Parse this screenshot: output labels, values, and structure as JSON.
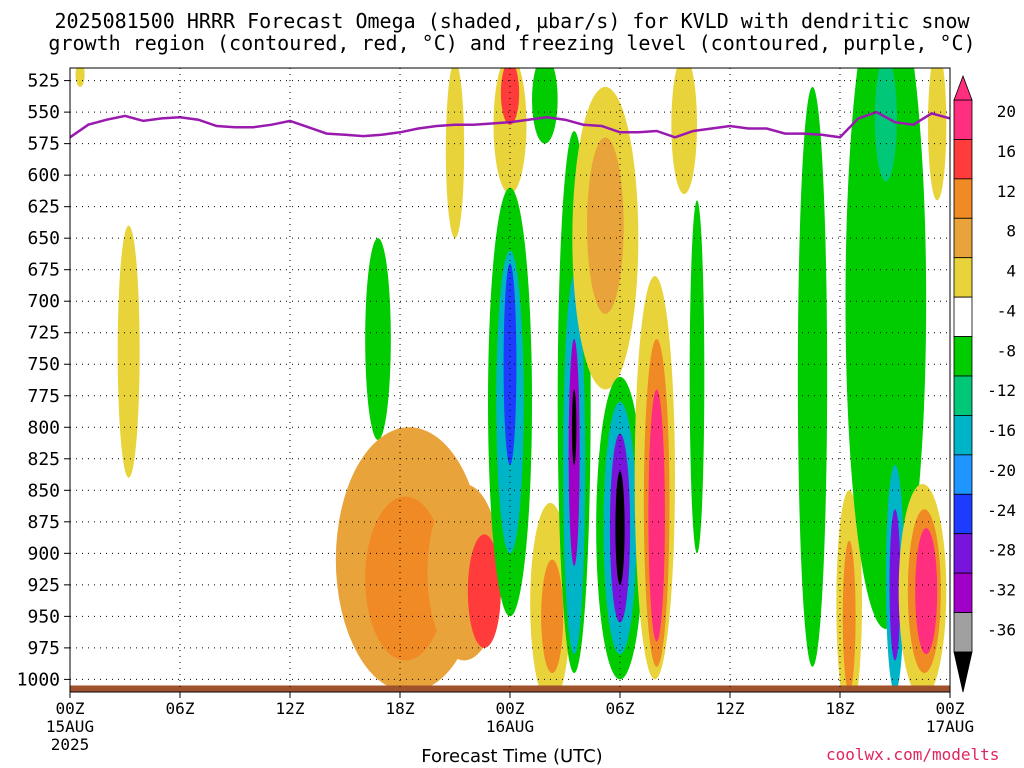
{
  "title_line1": "2025081500 HRRR Forecast Omega (shaded, µbar/s) for KVLD with dendritic snow",
  "title_line2": "growth region (contoured, red, °C) and freezing level (contoured, purple, °C)",
  "xlabel": "Forecast Time (UTC)",
  "credit": "coolwx.com/modelts",
  "colors": {
    "freezing_level": "#9a1ab0",
    "ground": "#a0522d",
    "grid": "#000000"
  },
  "chart_data": {
    "type": "heatmap",
    "title": "2025081500 HRRR Forecast Omega (shaded, µbar/s) for KVLD with dendritic snow growth region (contoured, red, °C) and freezing level (contoured, purple, °C)",
    "xlabel": "Forecast Time (UTC)",
    "ylabel": "",
    "x_unit": "hours from 2025081500",
    "xlim": [
      0,
      48
    ],
    "ylim": [
      1010,
      515
    ],
    "x_ticks": [
      {
        "hour": 0,
        "label": [
          "00Z",
          "15AUG",
          "2025"
        ]
      },
      {
        "hour": 6,
        "label": [
          "06Z"
        ]
      },
      {
        "hour": 12,
        "label": [
          "12Z"
        ]
      },
      {
        "hour": 18,
        "label": [
          "18Z"
        ]
      },
      {
        "hour": 24,
        "label": [
          "00Z",
          "16AUG"
        ]
      },
      {
        "hour": 30,
        "label": [
          "06Z"
        ]
      },
      {
        "hour": 36,
        "label": [
          "12Z"
        ]
      },
      {
        "hour": 42,
        "label": [
          "18Z"
        ]
      },
      {
        "hour": 48,
        "label": [
          "00Z",
          "17AUG"
        ]
      }
    ],
    "y_ticks": [
      525,
      550,
      575,
      600,
      625,
      650,
      675,
      700,
      725,
      750,
      775,
      800,
      825,
      850,
      875,
      900,
      925,
      950,
      975,
      1000
    ],
    "grid": true,
    "colorbar": {
      "labels": [
        "20",
        "16",
        "12",
        "8",
        "4",
        "-4",
        "-8",
        "-12",
        "-16",
        "-20",
        "-24",
        "-28",
        "-32",
        "-36"
      ],
      "bins": [
        {
          "range": [
            20,
            24
          ],
          "color": "#ff2e7e"
        },
        {
          "range": [
            16,
            20
          ],
          "color": "#ff3b3b"
        },
        {
          "range": [
            12,
            16
          ],
          "color": "#f08a24"
        },
        {
          "range": [
            8,
            12
          ],
          "color": "#e8a33a"
        },
        {
          "range": [
            4,
            8
          ],
          "color": "#e8d43a"
        },
        {
          "range": [
            -4,
            4
          ],
          "color": "#ffffff"
        },
        {
          "range": [
            -8,
            -4
          ],
          "color": "#00cc00"
        },
        {
          "range": [
            -12,
            -8
          ],
          "color": "#00c878"
        },
        {
          "range": [
            -16,
            -12
          ],
          "color": "#00b4c8"
        },
        {
          "range": [
            -20,
            -16
          ],
          "color": "#1e96ff"
        },
        {
          "range": [
            -24,
            -20
          ],
          "color": "#1e3cff"
        },
        {
          "range": [
            -28,
            -24
          ],
          "color": "#7814dc"
        },
        {
          "range": [
            -32,
            -28
          ],
          "color": "#a000c8"
        },
        {
          "range": [
            -36,
            -32
          ],
          "color": "#a0a0a0"
        }
      ],
      "over_color": "#ff2e7e",
      "under_color": "#000000"
    },
    "blobs": [
      {
        "t": 0.55,
        "p": 520,
        "halfw": 0.25,
        "halfh": 10,
        "value": 5
      },
      {
        "t": 3.2,
        "p": 740,
        "halfw": 0.6,
        "halfh": 100,
        "value": 5
      },
      {
        "t": 16.8,
        "p": 730,
        "halfw": 0.7,
        "halfh": 80,
        "value": -6
      },
      {
        "t": 18.5,
        "p": 905,
        "halfw": 4.0,
        "halfh": 105,
        "value": 10
      },
      {
        "t": 18.3,
        "p": 920,
        "halfw": 2.2,
        "halfh": 65,
        "value": 14
      },
      {
        "t": 21.5,
        "p": 915,
        "halfw": 2.0,
        "halfh": 70,
        "value": 10
      },
      {
        "t": 22.6,
        "p": 930,
        "halfw": 0.9,
        "halfh": 45,
        "value": 17
      },
      {
        "t": 21.0,
        "p": 580,
        "halfw": 0.5,
        "halfh": 70,
        "value": 5
      },
      {
        "t": 24.0,
        "p": 560,
        "halfw": 0.9,
        "halfh": 55,
        "value": 6
      },
      {
        "t": 24.0,
        "p": 535,
        "halfw": 0.5,
        "halfh": 25,
        "value": 18
      },
      {
        "t": 25.9,
        "p": 540,
        "halfw": 0.7,
        "halfh": 35,
        "value": -6
      },
      {
        "t": 24.0,
        "p": 780,
        "halfw": 1.2,
        "halfh": 170,
        "value": -8
      },
      {
        "t": 24.0,
        "p": 780,
        "halfw": 0.75,
        "halfh": 120,
        "value": -14
      },
      {
        "t": 24.0,
        "p": 750,
        "halfw": 0.35,
        "halfh": 80,
        "value": -22
      },
      {
        "t": 26.2,
        "p": 940,
        "halfw": 1.1,
        "halfh": 80,
        "value": 6
      },
      {
        "t": 26.3,
        "p": 950,
        "halfw": 0.6,
        "halfh": 45,
        "value": 12
      },
      {
        "t": 27.5,
        "p": 780,
        "halfw": 0.9,
        "halfh": 215,
        "value": -7
      },
      {
        "t": 27.5,
        "p": 830,
        "halfw": 0.6,
        "halfh": 150,
        "value": -14
      },
      {
        "t": 27.5,
        "p": 820,
        "halfw": 0.3,
        "halfh": 90,
        "value": -29
      },
      {
        "t": 27.5,
        "p": 800,
        "halfw": 0.12,
        "halfh": 30,
        "value": -40
      },
      {
        "t": 29.2,
        "p": 650,
        "halfw": 1.8,
        "halfh": 120,
        "value": 6
      },
      {
        "t": 29.2,
        "p": 640,
        "halfw": 1.0,
        "halfh": 70,
        "value": 11
      },
      {
        "t": 30.0,
        "p": 880,
        "halfw": 1.3,
        "halfh": 120,
        "value": -7
      },
      {
        "t": 30.0,
        "p": 880,
        "halfw": 0.9,
        "halfh": 100,
        "value": -16
      },
      {
        "t": 30.0,
        "p": 880,
        "halfw": 0.55,
        "halfh": 75,
        "value": -28
      },
      {
        "t": 30.0,
        "p": 880,
        "halfw": 0.25,
        "halfh": 45,
        "value": -40
      },
      {
        "t": 31.9,
        "p": 840,
        "halfw": 1.1,
        "halfh": 160,
        "value": 6
      },
      {
        "t": 32.0,
        "p": 860,
        "halfw": 0.7,
        "halfh": 130,
        "value": 14
      },
      {
        "t": 32.0,
        "p": 870,
        "halfw": 0.45,
        "halfh": 100,
        "value": 21
      },
      {
        "t": 34.2,
        "p": 760,
        "halfw": 0.4,
        "halfh": 140,
        "value": -6
      },
      {
        "t": 33.5,
        "p": 560,
        "halfw": 0.7,
        "halfh": 55,
        "value": 6
      },
      {
        "t": 40.5,
        "p": 760,
        "halfw": 0.8,
        "halfh": 230,
        "value": -6
      },
      {
        "t": 42.5,
        "p": 940,
        "halfw": 0.7,
        "halfh": 90,
        "value": 7
      },
      {
        "t": 42.5,
        "p": 950,
        "halfw": 0.35,
        "halfh": 60,
        "value": 13
      },
      {
        "t": 43.5,
        "p": 720,
        "halfw": 0.9,
        "halfh": 200,
        "value": 8
      },
      {
        "t": 43.7,
        "p": 700,
        "halfw": 0.6,
        "halfh": 150,
        "value": 15
      },
      {
        "t": 43.8,
        "p": 690,
        "halfw": 0.35,
        "halfh": 100,
        "value": 21
      },
      {
        "t": 44.5,
        "p": 700,
        "halfw": 2.2,
        "halfh": 260,
        "value": -6
      },
      {
        "t": 44.5,
        "p": 555,
        "halfw": 0.6,
        "halfh": 50,
        "value": -12
      },
      {
        "t": 45.0,
        "p": 920,
        "halfw": 0.5,
        "halfh": 90,
        "value": -14
      },
      {
        "t": 45.0,
        "p": 925,
        "halfw": 0.3,
        "halfh": 60,
        "value": -28
      },
      {
        "t": 46.5,
        "p": 930,
        "halfw": 1.3,
        "halfh": 85,
        "value": 7
      },
      {
        "t": 46.6,
        "p": 930,
        "halfw": 0.9,
        "halfh": 65,
        "value": 15
      },
      {
        "t": 46.7,
        "p": 930,
        "halfw": 0.6,
        "halfh": 50,
        "value": 21
      },
      {
        "t": 47.3,
        "p": 560,
        "halfw": 0.5,
        "halfh": 60,
        "value": 5
      }
    ],
    "freezing_level": {
      "name": "freezing level",
      "t": [
        0,
        1,
        2,
        3,
        4,
        5,
        6,
        7,
        8,
        9,
        10,
        11,
        12,
        13,
        14,
        15,
        16,
        17,
        18,
        19,
        20,
        21,
        22,
        23,
        24,
        25,
        26,
        27,
        28,
        29,
        30,
        31,
        32,
        33,
        34,
        35,
        36,
        37,
        38,
        39,
        40,
        41,
        42,
        43,
        44,
        45,
        46,
        47,
        48
      ],
      "p": [
        570,
        560,
        556,
        553,
        557,
        555,
        554,
        556,
        561,
        562,
        562,
        560,
        557,
        562,
        567,
        568,
        569,
        568,
        566,
        563,
        561,
        560,
        560,
        559,
        558,
        556,
        554,
        556,
        560,
        561,
        566,
        566,
        565,
        570,
        565,
        563,
        561,
        563,
        563,
        567,
        567,
        568,
        570,
        555,
        550,
        558,
        560,
        551,
        555
      ]
    },
    "surface_pressure": 1008
  }
}
